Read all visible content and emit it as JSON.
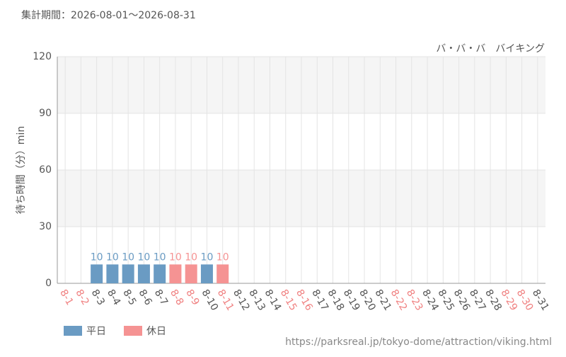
{
  "chart_data": {
    "type": "bar",
    "title": "集計期間：2026-08-01～2026-08-31",
    "subtitle": "バ・バ・バ　バイキング",
    "y_label": "待ち時間（分）min",
    "source": "https://parksreal.jp/tokyo-dome/attraction/viking.html",
    "categories": [
      "8-1",
      "8-2",
      "8-3",
      "8-4",
      "8-5",
      "8-6",
      "8-7",
      "8-8",
      "8-9",
      "8-10",
      "8-11",
      "8-12",
      "8-13",
      "8-14",
      "8-15",
      "8-16",
      "8-17",
      "8-18",
      "8-19",
      "8-20",
      "8-21",
      "8-22",
      "8-23",
      "8-24",
      "8-25",
      "8-26",
      "8-27",
      "8-28",
      "8-29",
      "8-30",
      "8-31"
    ],
    "category_colors": [
      "#f08080",
      "#f08080",
      "#555",
      "#555",
      "#555",
      "#555",
      "#555",
      "#f08080",
      "#f08080",
      "#555",
      "#f08080",
      "#555",
      "#555",
      "#555",
      "#f08080",
      "#f08080",
      "#555",
      "#555",
      "#555",
      "#555",
      "#555",
      "#f08080",
      "#f08080",
      "#555",
      "#555",
      "#555",
      "#555",
      "#555",
      "#f08080",
      "#f08080",
      "#555"
    ],
    "series": [
      {
        "name": "平日",
        "color": "#6a9bc3",
        "values": [
          null,
          null,
          10,
          10,
          10,
          10,
          10,
          null,
          null,
          10,
          null,
          null,
          null,
          null,
          null,
          null,
          null,
          null,
          null,
          null,
          null,
          null,
          null,
          null,
          null,
          null,
          null,
          null,
          null,
          null,
          null
        ]
      },
      {
        "name": "休日",
        "color": "#f59393",
        "values": [
          null,
          null,
          null,
          null,
          null,
          null,
          null,
          10,
          10,
          null,
          10,
          null,
          null,
          null,
          null,
          null,
          null,
          null,
          null,
          null,
          null,
          null,
          null,
          null,
          null,
          null,
          null,
          null,
          null,
          null,
          null
        ]
      }
    ],
    "ylim": [
      0,
      120
    ],
    "yticks": [
      0,
      30,
      60,
      90,
      120
    ],
    "grid": true
  }
}
